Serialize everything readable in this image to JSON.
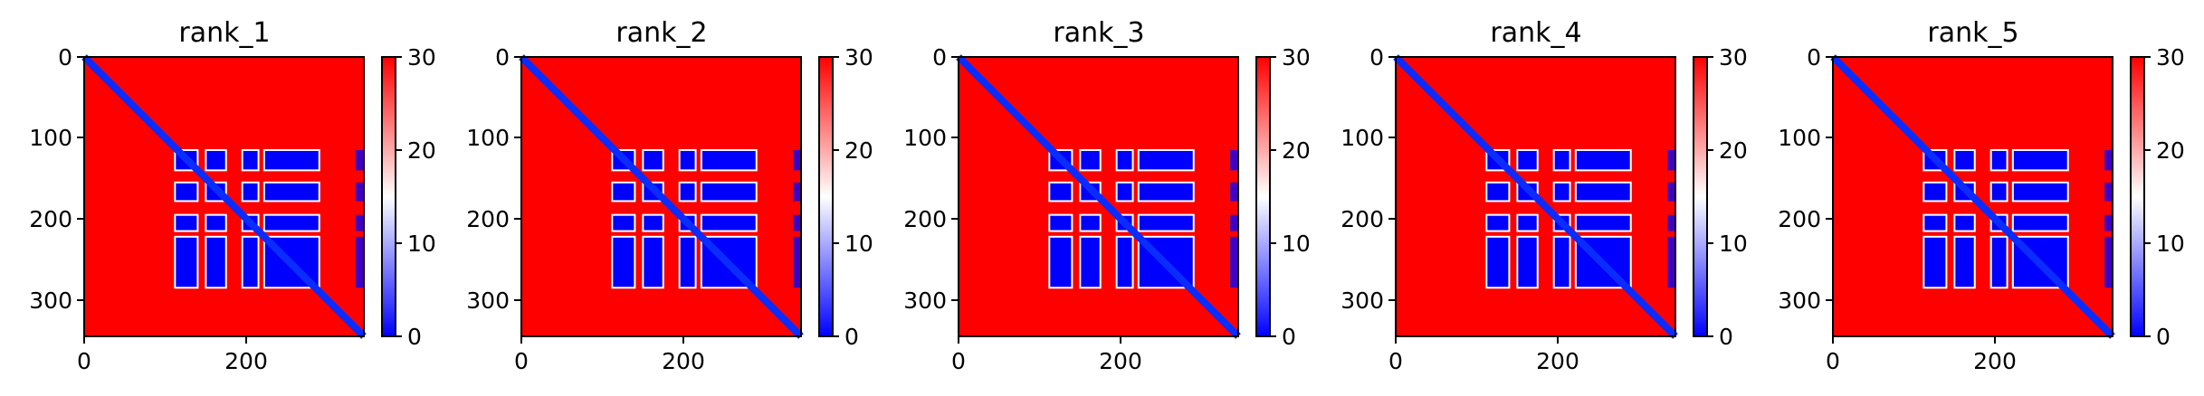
{
  "chart_data": [
    {
      "type": "heatmap",
      "title": "rank_1",
      "x_ticks": [
        0,
        200
      ],
      "y_ticks": [
        0,
        100,
        200,
        300
      ],
      "xlim": [
        0,
        345
      ],
      "ylim": [
        345,
        0
      ],
      "colorbar": {
        "ticks": [
          0,
          10,
          20,
          30
        ],
        "range": [
          0,
          30
        ],
        "colormap": "bwr"
      }
    },
    {
      "type": "heatmap",
      "title": "rank_2",
      "x_ticks": [
        0,
        200
      ],
      "y_ticks": [
        0,
        100,
        200,
        300
      ],
      "xlim": [
        0,
        345
      ],
      "ylim": [
        345,
        0
      ],
      "colorbar": {
        "ticks": [
          0,
          10,
          20,
          30
        ],
        "range": [
          0,
          30
        ],
        "colormap": "bwr"
      }
    },
    {
      "type": "heatmap",
      "title": "rank_3",
      "x_ticks": [
        0,
        200
      ],
      "y_ticks": [
        0,
        100,
        200,
        300
      ],
      "xlim": [
        0,
        345
      ],
      "ylim": [
        345,
        0
      ],
      "colorbar": {
        "ticks": [
          0,
          10,
          20,
          30
        ],
        "range": [
          0,
          30
        ],
        "colormap": "bwr"
      }
    },
    {
      "type": "heatmap",
      "title": "rank_4",
      "x_ticks": [
        0,
        200
      ],
      "y_ticks": [
        0,
        100,
        200,
        300
      ],
      "xlim": [
        0,
        345
      ],
      "ylim": [
        345,
        0
      ],
      "colorbar": {
        "ticks": [
          0,
          10,
          20,
          30
        ],
        "range": [
          0,
          30
        ],
        "colormap": "bwr"
      }
    },
    {
      "type": "heatmap",
      "title": "rank_5",
      "x_ticks": [
        0,
        200
      ],
      "y_ticks": [
        0,
        100,
        200,
        300
      ],
      "xlim": [
        0,
        345
      ],
      "ylim": [
        345,
        0
      ],
      "colorbar": {
        "ticks": [
          0,
          10,
          20,
          30
        ],
        "range": [
          0,
          30
        ],
        "colormap": "bwr"
      }
    }
  ],
  "structure": {
    "matrix_size": 345,
    "low_blocks_rows": [
      [
        115,
        140
      ],
      [
        155,
        178
      ],
      [
        195,
        215
      ],
      [
        222,
        285
      ]
    ],
    "low_blocks_cols": [
      [
        112,
        140
      ],
      [
        150,
        175
      ],
      [
        195,
        215
      ],
      [
        222,
        290
      ]
    ],
    "right_edge_cols": [
      335,
      345
    ],
    "colors": {
      "low": "#0000ff",
      "mid": "#ffffff",
      "high": "#ff0000"
    }
  }
}
